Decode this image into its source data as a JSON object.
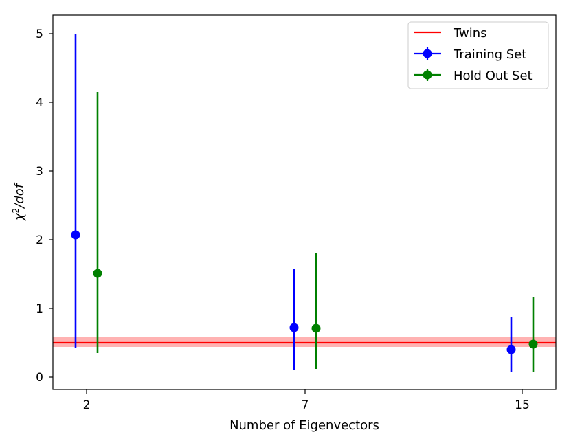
{
  "chart_data": {
    "type": "scatter",
    "xlabel": "Number of Eigenvectors",
    "ylabel_prefix": "χ",
    "ylabel_sup": "2",
    "ylabel_suffix": "/dof",
    "categories": [
      "2",
      "7",
      "15"
    ],
    "ylim": [
      -0.18,
      5.27
    ],
    "yticks": [
      0,
      1,
      2,
      3,
      4,
      5
    ],
    "grid": false,
    "legend_position": "top-right",
    "twins": {
      "name": "Twins",
      "value": 0.5,
      "band": [
        0.44,
        0.58
      ],
      "color": "#ff0000"
    },
    "series": [
      {
        "name": "Training Set",
        "color": "#0000ff",
        "offset": -1,
        "points": [
          {
            "category": "2",
            "y": 2.07,
            "low": 0.43,
            "high": 5.0
          },
          {
            "category": "7",
            "y": 0.72,
            "low": 0.11,
            "high": 1.58
          },
          {
            "category": "15",
            "y": 0.4,
            "low": 0.07,
            "high": 0.88
          }
        ]
      },
      {
        "name": "Hold Out Set",
        "color": "#008000",
        "offset": 1,
        "points": [
          {
            "category": "2",
            "y": 1.51,
            "low": 0.35,
            "high": 4.15
          },
          {
            "category": "7",
            "y": 0.71,
            "low": 0.12,
            "high": 1.8
          },
          {
            "category": "15",
            "y": 0.48,
            "low": 0.08,
            "high": 1.16
          }
        ]
      }
    ]
  }
}
